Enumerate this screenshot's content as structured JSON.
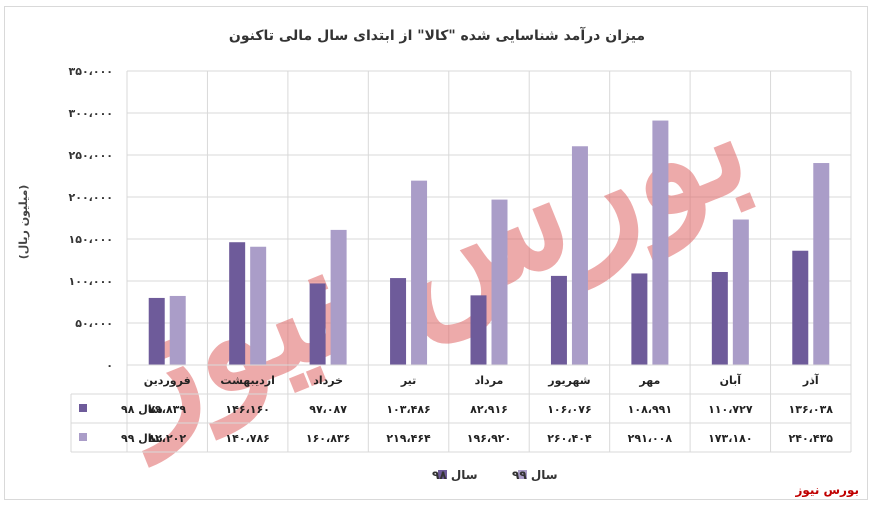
{
  "brand": "بورس نیوز",
  "watermark": "بورس نیوز",
  "chart_data": {
    "type": "bar",
    "title": "میزان درآمد شناسایی شده \"کالا\" از ابتدای سال مالی تاکنون",
    "ylabel": "(میلیون ریال)",
    "ylim": [
      0,
      350000
    ],
    "yticks": [
      0,
      50000,
      100000,
      150000,
      200000,
      250000,
      300000,
      350000
    ],
    "ytick_labels": [
      "۰",
      "۵۰،۰۰۰",
      "۱۰۰،۰۰۰",
      "۱۵۰،۰۰۰",
      "۲۰۰،۰۰۰",
      "۲۵۰،۰۰۰",
      "۳۰۰،۰۰۰",
      "۳۵۰،۰۰۰"
    ],
    "grid": true,
    "legend": "bottom",
    "categories": [
      "فروردین",
      "اردیبهشت",
      "خرداد",
      "تیر",
      "مرداد",
      "شهریور",
      "مهر",
      "آبان",
      "آذر"
    ],
    "series": [
      {
        "name": "سال ۹۸",
        "color": "#6e5b9a",
        "values": [
          79839,
          146160,
          97087,
          103486,
          82916,
          106076,
          108991,
          110727,
          136038
        ],
        "labels": [
          "۷۹،۸۳۹",
          "۱۴۶،۱۶۰",
          "۹۷،۰۸۷",
          "۱۰۳،۴۸۶",
          "۸۲،۹۱۶",
          "۱۰۶،۰۷۶",
          "۱۰۸،۹۹۱",
          "۱۱۰،۷۲۷",
          "۱۳۶،۰۳۸"
        ]
      },
      {
        "name": "سال ۹۹",
        "color": "#aa9dc8",
        "values": [
          82202,
          140786,
          160836,
          219464,
          196920,
          260404,
          291008,
          173180,
          240435
        ],
        "labels": [
          "۸۲،۲۰۲",
          "۱۴۰،۷۸۶",
          "۱۶۰،۸۳۶",
          "۲۱۹،۴۶۴",
          "۱۹۶،۹۲۰",
          "۲۶۰،۴۰۴",
          "۲۹۱،۰۰۸",
          "۱۷۳،۱۸۰",
          "۲۴۰،۴۳۵"
        ]
      }
    ]
  }
}
